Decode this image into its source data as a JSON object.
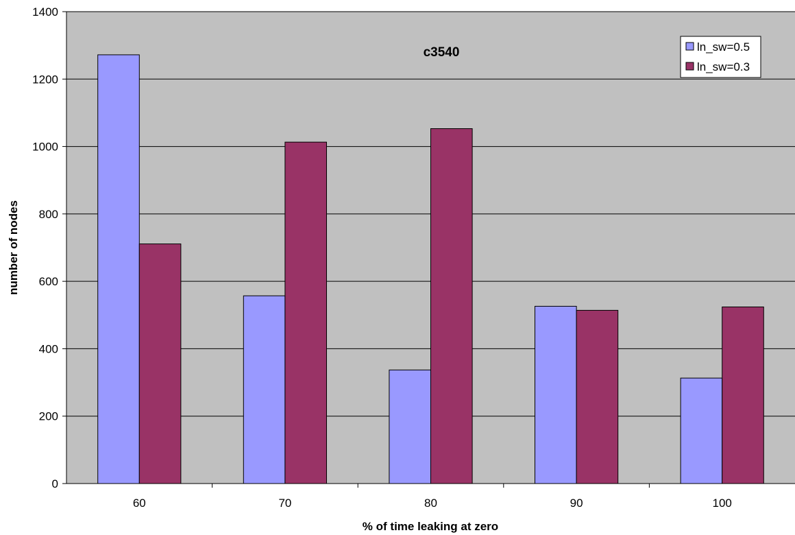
{
  "chart_data": {
    "type": "bar",
    "title": "c3540",
    "xlabel": "% of time leaking at zero",
    "ylabel": "number of nodes",
    "categories": [
      "60",
      "70",
      "80",
      "90",
      "100"
    ],
    "ylim": [
      0,
      1400
    ],
    "ytick_step": 200,
    "yticks": [
      "0",
      "200",
      "400",
      "600",
      "800",
      "1000",
      "1200",
      "1400"
    ],
    "grid": true,
    "legend_position": "top-right",
    "plot_background": "#c0c0c0",
    "series": [
      {
        "name": "ln_sw=0.5",
        "color": "#9999ff",
        "values": [
          1272,
          557,
          337,
          526,
          313
        ]
      },
      {
        "name": "ln_sw=0.3",
        "color": "#993366",
        "values": [
          711,
          1013,
          1053,
          514,
          524
        ]
      }
    ]
  }
}
